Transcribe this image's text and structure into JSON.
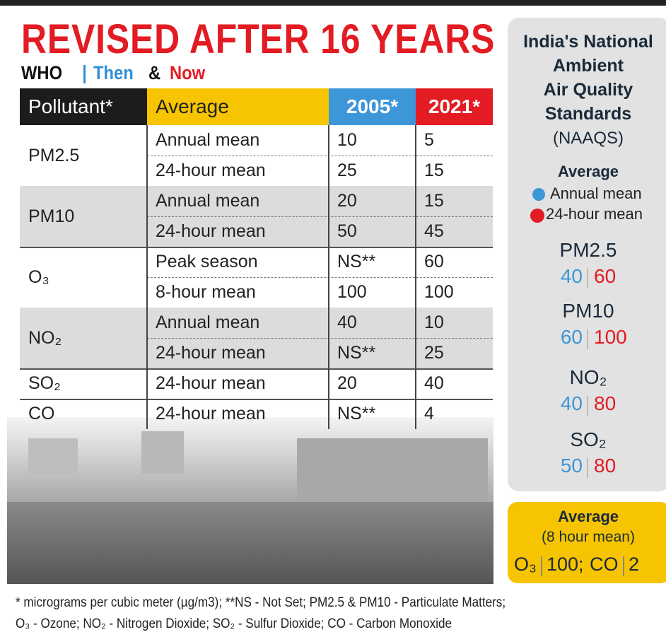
{
  "header": {
    "title": "REVISED AFTER 16 YEARS",
    "subtitle": {
      "org": "WHO",
      "then": "Then",
      "and": "&",
      "now": "Now"
    }
  },
  "table": {
    "columns": [
      "Pollutant*",
      "Average",
      "2005*",
      "2021*"
    ],
    "groups": [
      {
        "pollutant": "PM2.5",
        "rows": [
          [
            "Annual mean",
            10,
            5
          ],
          [
            "24-hour mean",
            25,
            15
          ]
        ]
      },
      {
        "pollutant": "PM10",
        "rows": [
          [
            "Annual mean",
            20,
            15
          ],
          [
            "24-hour mean",
            50,
            45
          ]
        ]
      },
      {
        "pollutant": "O₃",
        "rows": [
          [
            "Peak season",
            "NS**",
            60
          ],
          [
            "8-hour mean",
            100,
            100
          ]
        ]
      },
      {
        "pollutant": "NO₂",
        "rows": [
          [
            "Annual mean",
            40,
            10
          ],
          [
            "24-hour mean",
            "NS**",
            25
          ]
        ]
      },
      {
        "pollutant": "SO₂",
        "rows": [
          [
            "24-hour mean",
            20,
            40
          ]
        ]
      },
      {
        "pollutant": "CO",
        "rows": [
          [
            "24-hour mean",
            "NS**",
            4
          ]
        ]
      }
    ]
  },
  "sidebar": {
    "title": [
      "India's National",
      "Ambient",
      "Air Quality",
      "Standards"
    ],
    "subtitle": "(NAAQS)",
    "legend": {
      "title": "Average",
      "annual": "Annual mean",
      "day": "24-hour mean"
    },
    "standards": [
      {
        "pollutant": "PM2.5",
        "annual": 40,
        "day": 60
      },
      {
        "pollutant": "PM10",
        "annual": 60,
        "day": 100
      },
      {
        "pollutant": "NO₂",
        "annual": 40,
        "day": 80
      },
      {
        "pollutant": "SO₂",
        "annual": 50,
        "day": 80
      }
    ],
    "box": {
      "title": "Average",
      "subtitle": "(8 hour mean)",
      "items": [
        {
          "name": "O₃",
          "value": "100;"
        },
        {
          "name": "CO",
          "value": "2"
        }
      ]
    }
  },
  "footnote": [
    "* micrograms per cubic meter (µg/m3); **NS - Not Set; PM2.5 & PM10 - Particulate Matters;",
    "O₃ - Ozone; NO₂ - Nitrogen Dioxide; SO₂ - Sulfur Dioxide; CO - Carbon Monoxide"
  ]
}
